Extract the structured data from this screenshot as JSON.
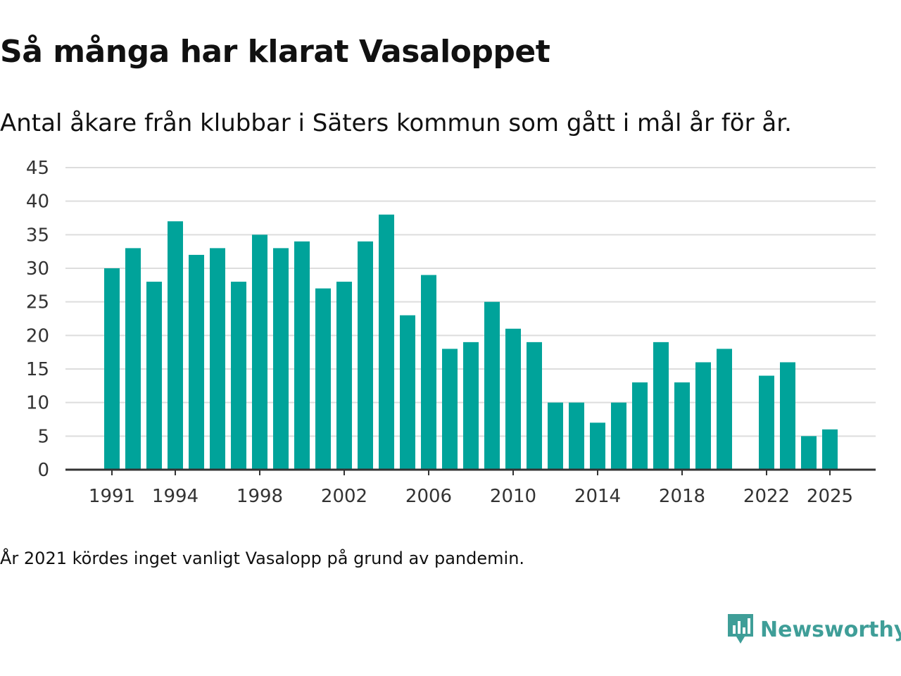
{
  "title": "Så många har klarat Vasaloppet",
  "subtitle": "Antal åkare från klubbar i Säters kommun som gått i mål år för år.",
  "note": "År 2021 kördes inget vanligt Vasalopp på grund av pandemin.",
  "brand": {
    "name": "Newsworthy",
    "color": "#3f9e98",
    "icon": "newsworthy-logo-icon"
  },
  "colors": {
    "bar": "#00a39a",
    "grid": "#dddddd",
    "axis": "#333333"
  },
  "chart_data": {
    "type": "bar",
    "title": "Så många har klarat Vasaloppet",
    "xlabel": "",
    "ylabel": "",
    "ylim": [
      0,
      45
    ],
    "yticks": [
      0,
      5,
      10,
      15,
      20,
      25,
      30,
      35,
      40,
      45
    ],
    "xtick_labels": [
      "1991",
      "1994",
      "1998",
      "2002",
      "2006",
      "2010",
      "2014",
      "2018",
      "2022",
      "2025"
    ],
    "grid": true,
    "categories": [
      "1991",
      "1992",
      "1993",
      "1994",
      "1995",
      "1996",
      "1997",
      "1998",
      "1999",
      "2000",
      "2001",
      "2002",
      "2003",
      "2004",
      "2005",
      "2006",
      "2007",
      "2008",
      "2009",
      "2010",
      "2011",
      "2012",
      "2013",
      "2014",
      "2015",
      "2016",
      "2017",
      "2018",
      "2019",
      "2020",
      "2021",
      "2022",
      "2023",
      "2024",
      "2025"
    ],
    "values": [
      30,
      33,
      28,
      37,
      32,
      33,
      28,
      35,
      33,
      34,
      27,
      28,
      34,
      38,
      23,
      29,
      18,
      19,
      25,
      21,
      19,
      10,
      10,
      7,
      10,
      13,
      19,
      13,
      16,
      18,
      null,
      14,
      16,
      5,
      6
    ]
  }
}
